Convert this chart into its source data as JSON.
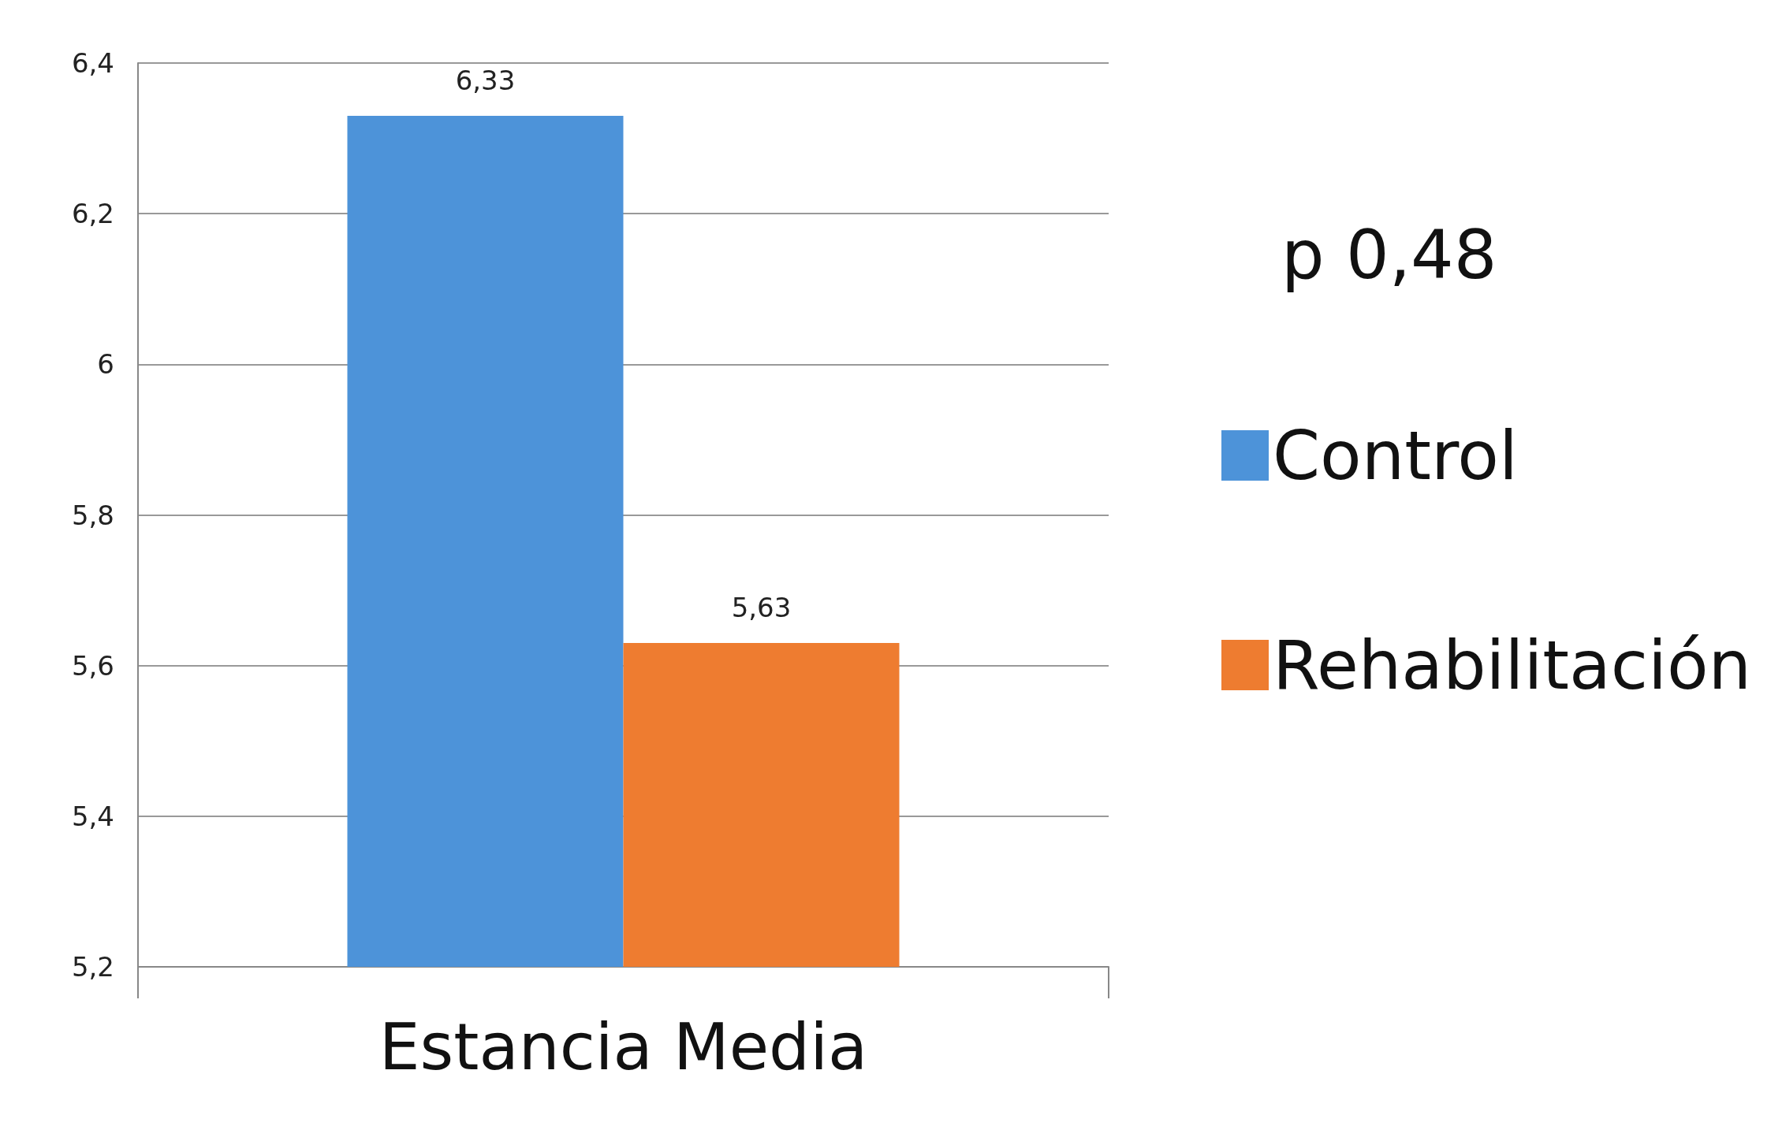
{
  "chart_data": {
    "type": "bar",
    "categories": [
      "Estancia Media"
    ],
    "series": [
      {
        "name": "Control",
        "color": "#4d93d9",
        "values": [
          6.33
        ],
        "value_labels": [
          "6,33"
        ]
      },
      {
        "name": "Rehabilitación",
        "color": "#ee7c30",
        "values": [
          5.63
        ],
        "value_labels": [
          "5,63"
        ]
      }
    ],
    "ylim": [
      5.2,
      6.4
    ],
    "yticks": [
      {
        "value": 5.2,
        "label": "5,2"
      },
      {
        "value": 5.4,
        "label": "5,4"
      },
      {
        "value": 5.6,
        "label": "5,6"
      },
      {
        "value": 5.8,
        "label": "5,8"
      },
      {
        "value": 6,
        "label": "6"
      },
      {
        "value": 6.2,
        "label": "6,2"
      },
      {
        "value": 6.4,
        "label": "6,4"
      }
    ],
    "grid": "y",
    "legend": "right",
    "annotations": [
      "p 0,48"
    ]
  }
}
